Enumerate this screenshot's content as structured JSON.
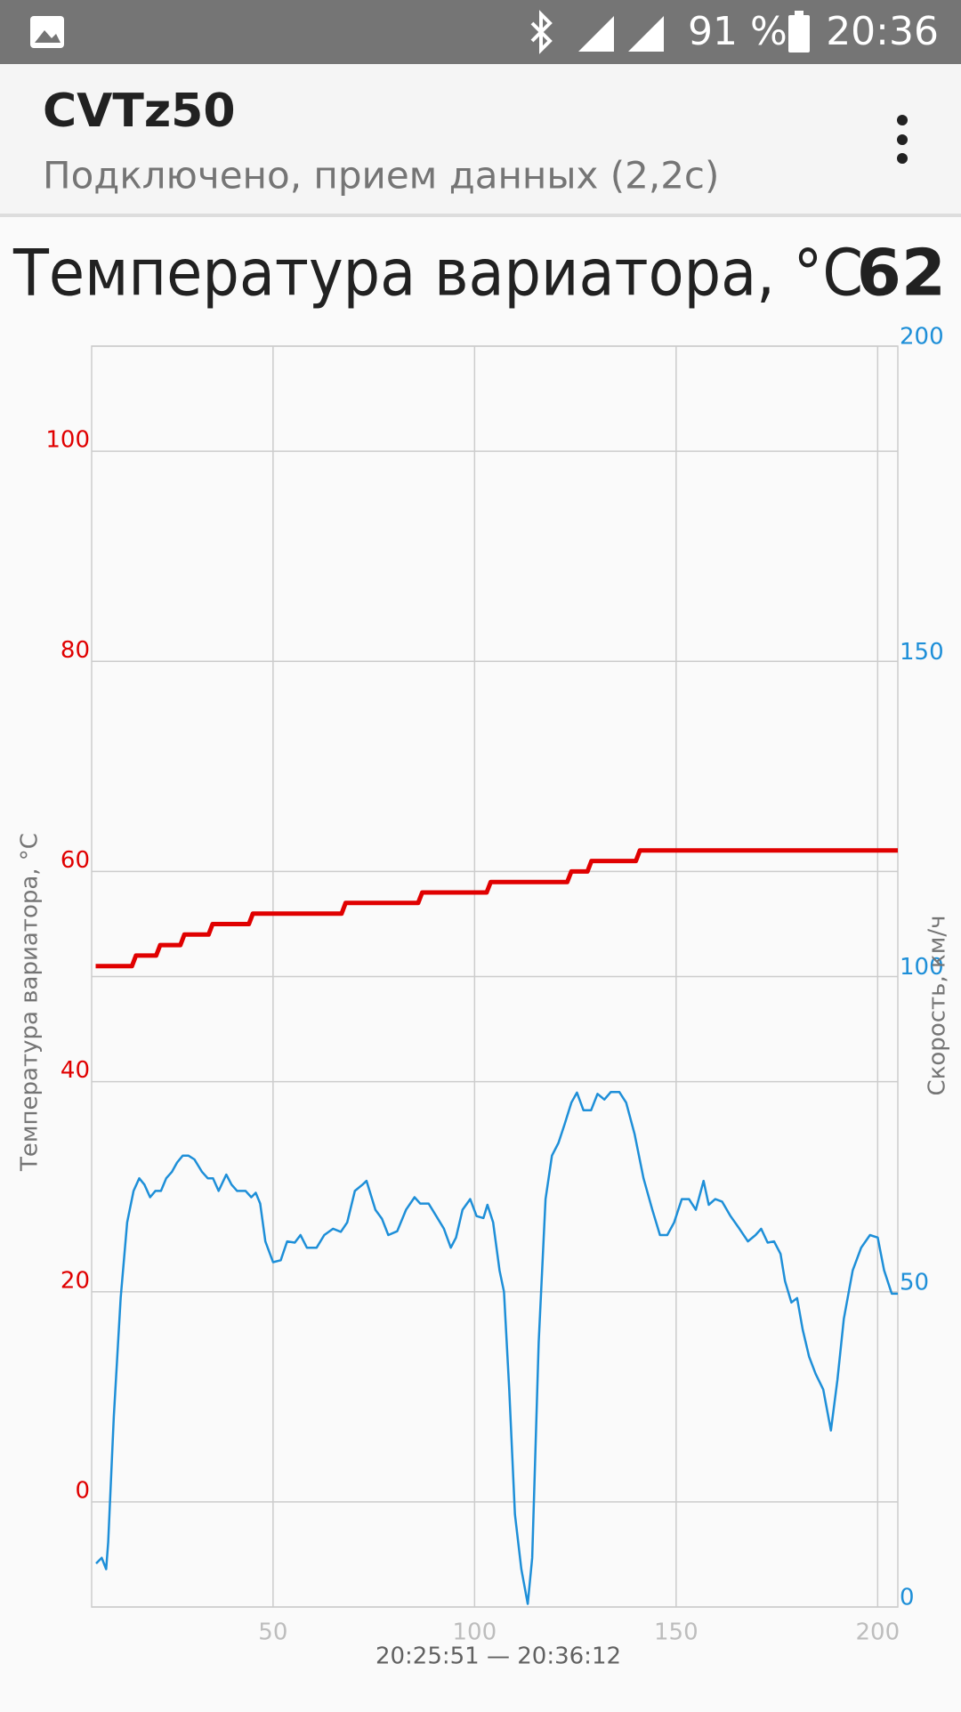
{
  "status_bar": {
    "battery": "91 %",
    "time": "20:36"
  },
  "app_bar": {
    "title": "CVTz50",
    "subtitle": "Подключено, прием данных (2,2c)"
  },
  "chart_data": {
    "type": "line",
    "title": "Температура вариатора, °С",
    "current_value": 62,
    "xlabel": "20:25:51 — 20:36:12",
    "ylabel": "Температура вариатора, °С",
    "y2label": "Скорость, км/ч",
    "xlim": [
      5,
      205
    ],
    "xticks": [
      50,
      100,
      150,
      200
    ],
    "ylim": [
      -10,
      110
    ],
    "yticks": [
      0,
      20,
      40,
      60,
      80,
      100
    ],
    "y2lim": [
      0,
      200
    ],
    "y2ticks": [
      0,
      50,
      100,
      150,
      200
    ],
    "grid": true,
    "series": [
      {
        "color": "#e00000",
        "axis": "y",
        "x": [
          6,
          15,
          16,
          21,
          22,
          27,
          28,
          34,
          35,
          44,
          45,
          67,
          68,
          86,
          87,
          103,
          104,
          123,
          124,
          128,
          129,
          140,
          141,
          205
        ],
        "values": [
          51,
          51,
          52,
          52,
          53,
          53,
          54,
          54,
          55,
          55,
          56,
          56,
          57,
          57,
          58,
          58,
          59,
          59,
          60,
          60,
          61,
          61,
          62,
          62
        ]
      },
      {
        "color": "#1e8fd8",
        "axis": "y2",
        "x": [
          6.1,
          7.5,
          8.6,
          9.1,
          10.5,
          12.2,
          13.8,
          15.4,
          16.8,
          18.1,
          19.5,
          20.8,
          22.2,
          23.5,
          24.9,
          26.2,
          27.6,
          29,
          30.5,
          32.4,
          33.8,
          35.1,
          36.5,
          38.4,
          39.7,
          41.1,
          43.2,
          44.6,
          45.7,
          46.8,
          48.1,
          50,
          51.9,
          53.5,
          55.4,
          56.8,
          58.4,
          60.8,
          62.7,
          64.9,
          66.8,
          68.4,
          70.3,
          72.2,
          73.2,
          75.4,
          77,
          78.6,
          80.8,
          83,
          85.1,
          86.5,
          88.6,
          90.5,
          92.4,
          94.1,
          95.4,
          97,
          98.9,
          100.5,
          102.2,
          103.2,
          104.6,
          106.2,
          107.3,
          108.6,
          110,
          111.6,
          113.2,
          114.3,
          115.9,
          117.6,
          119.2,
          120.8,
          122.4,
          124,
          125.4,
          127,
          128.9,
          130.5,
          132.2,
          133.8,
          135.9,
          137.6,
          139.7,
          141.9,
          144.1,
          146,
          147.8,
          149.5,
          151.4,
          153.2,
          154.9,
          156.8,
          158.1,
          159.7,
          161.4,
          163.5,
          165.7,
          167.8,
          169.7,
          171.1,
          172.7,
          174.3,
          175.9,
          177,
          178.6,
          180,
          181.4,
          183,
          184.6,
          186.5,
          188.4,
          190,
          191.6,
          193.8,
          195.9,
          198.1,
          200,
          201.6,
          203.5,
          205
        ],
        "values": [
          6.9,
          7.8,
          6,
          10.3,
          30.2,
          49,
          61,
          66,
          68,
          67,
          65,
          66,
          66,
          68,
          69,
          70.5,
          71.6,
          71.6,
          71,
          69,
          68,
          68,
          66,
          68.6,
          67,
          66,
          66,
          65,
          65.7,
          64,
          58,
          54.7,
          55,
          58,
          57.8,
          59,
          57,
          57,
          59,
          60,
          59.5,
          61,
          66,
          67,
          67.6,
          63,
          61.6,
          59,
          59.6,
          63,
          65,
          64,
          64,
          62,
          60,
          57,
          58.6,
          63,
          64.7,
          62,
          61.7,
          63.8,
          61,
          53.4,
          50,
          34.5,
          14.7,
          6,
          0.5,
          7.8,
          42,
          64.7,
          71.6,
          73.6,
          76.7,
          80,
          81.6,
          78.8,
          78.8,
          81.4,
          80.5,
          81.7,
          81.7,
          80,
          75,
          68,
          63,
          59,
          59,
          61,
          64.7,
          64.7,
          63,
          67.6,
          63.8,
          64.7,
          64.3,
          62,
          60,
          58,
          59,
          60,
          57.8,
          58,
          56,
          51.7,
          48.3,
          49,
          44,
          39.7,
          37,
          34.5,
          28,
          36,
          45.7,
          53.4,
          57,
          59,
          58.6,
          53.4,
          49.7,
          49.7
        ]
      }
    ]
  }
}
